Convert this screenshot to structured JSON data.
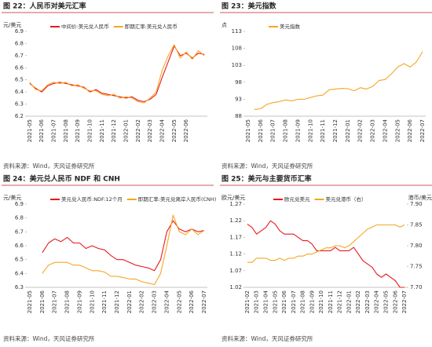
{
  "chart_data": [
    {
      "type": "line",
      "title": "图 22：人民币对美元汇率",
      "y_label": "元/美元",
      "source": "资料来源：Wind，天风证券研究所",
      "categories": [
        "2021-05",
        null,
        "2021-06",
        null,
        "2021-07",
        null,
        "2021-08",
        null,
        "2021-09",
        null,
        "2021-10",
        null,
        "2021-11",
        null,
        "2021-12",
        null,
        "2022-01",
        null,
        "2022-02",
        null,
        "2022-03",
        null,
        "2022-04",
        null,
        "2022-05",
        null,
        "2022-06",
        null,
        null,
        null
      ],
      "series": [
        {
          "name": "中间价:美元兑人民币",
          "color": "#e8191d",
          "values": [
            6.47,
            6.43,
            6.4,
            6.45,
            6.47,
            6.48,
            6.47,
            6.46,
            6.45,
            6.44,
            6.4,
            6.42,
            6.39,
            6.38,
            6.37,
            6.36,
            6.35,
            6.36,
            6.33,
            6.32,
            6.34,
            6.38,
            6.52,
            6.65,
            6.78,
            6.7,
            6.72,
            6.68,
            6.72,
            6.71
          ]
        },
        {
          "name": "即期汇率:美元兑人民币",
          "color": "#f5a623",
          "values": [
            6.48,
            6.42,
            6.41,
            6.46,
            6.48,
            6.47,
            6.48,
            6.45,
            6.46,
            6.43,
            6.41,
            6.41,
            6.38,
            6.37,
            6.38,
            6.35,
            6.36,
            6.35,
            6.32,
            6.31,
            6.35,
            6.4,
            6.58,
            6.7,
            6.79,
            6.68,
            6.73,
            6.67,
            6.74,
            6.7
          ]
        }
      ],
      "ylim": [
        6.2,
        6.9
      ],
      "yticks": [
        6.2,
        6.3,
        6.4,
        6.5,
        6.6,
        6.7,
        6.8,
        6.9
      ]
    },
    {
      "type": "line",
      "title": "图 23：美元指数",
      "y_label": "点",
      "source": "资料来源：Wind，天风证券研究所",
      "categories": [
        "2021-05",
        null,
        "2021-06",
        null,
        "2021-07",
        null,
        "2021-08",
        null,
        "2021-09",
        null,
        "2021-10",
        null,
        "2021-11",
        null,
        "2021-12",
        null,
        "2022-01",
        null,
        "2022-02",
        null,
        "2022-03",
        null,
        "2022-04",
        null,
        "2022-05",
        null,
        "2022-06",
        null,
        "2022-07"
      ],
      "series": [
        {
          "name": "美元指数",
          "color": "#f5a623",
          "values": [
            null,
            90.0,
            90.2,
            91.5,
            92.0,
            92.3,
            92.8,
            92.5,
            93.0,
            93.0,
            93.5,
            94.0,
            94.2,
            95.8,
            96.0,
            96.2,
            96.1,
            95.5,
            96.4,
            96.0,
            96.8,
            98.5,
            98.8,
            100.5,
            102.5,
            103.5,
            102.5,
            104.0,
            107.0
          ]
        }
      ],
      "ylim": [
        88,
        113
      ],
      "yticks": [
        88,
        93,
        98,
        103,
        108,
        113
      ]
    },
    {
      "type": "line",
      "title": "图 24：美元兑人民币 NDF 和 CNH",
      "y_label": "元/美元",
      "source": "资料来源：Wind，天风证券研究所",
      "categories": [
        "2021-05",
        null,
        "2021-06",
        null,
        "2021-07",
        null,
        "2021-08",
        null,
        "2021-09",
        null,
        "2021-10",
        null,
        "2021-11",
        null,
        "2021-12",
        null,
        "2022-01",
        null,
        "2022-02",
        null,
        "2022-03",
        null,
        "2022-04",
        null,
        "2022-05",
        null,
        "2022-06",
        null,
        "2022-07"
      ],
      "series": [
        {
          "name": "美元兑人民币:NDF:12个月",
          "color": "#e8191d",
          "values": [
            null,
            null,
            6.55,
            6.62,
            6.65,
            6.63,
            6.66,
            6.62,
            6.62,
            6.58,
            6.6,
            6.58,
            6.57,
            6.53,
            6.5,
            6.5,
            6.48,
            6.46,
            6.45,
            6.44,
            6.42,
            6.5,
            6.7,
            6.78,
            6.72,
            6.7,
            6.72,
            6.7,
            6.71
          ]
        },
        {
          "name": "即期汇率:美元兑离岸人民币(CNH)",
          "color": "#f5a623",
          "values": [
            null,
            null,
            6.4,
            6.46,
            6.48,
            6.48,
            6.48,
            6.46,
            6.46,
            6.44,
            6.42,
            6.42,
            6.41,
            6.38,
            6.38,
            6.37,
            6.36,
            6.36,
            6.34,
            6.33,
            6.32,
            6.4,
            6.6,
            6.82,
            6.7,
            6.68,
            6.72,
            6.68,
            6.71
          ]
        }
      ],
      "ylim": [
        6.3,
        6.9
      ],
      "yticks": [
        6.3,
        6.4,
        6.5,
        6.6,
        6.7,
        6.8,
        6.9
      ]
    },
    {
      "type": "line",
      "title": "图 25：美元与主要货币汇率",
      "y_label": "欧元/美元",
      "y2_label": "港币/美元",
      "source": "资料来源：Wind，天风证券研究所",
      "categories": [
        "2021-02",
        null,
        "2021-03",
        null,
        "2021-04",
        null,
        "2021-05",
        null,
        "2021-06",
        null,
        "2021-07",
        null,
        "2021-08",
        null,
        "2021-09",
        null,
        "2021-10",
        null,
        "2021-11",
        null,
        "2021-12",
        null,
        "2022-01",
        null,
        "2022-02",
        null,
        "2022-03",
        null,
        "2022-04",
        null,
        "2022-05",
        null,
        "2022-06",
        null,
        "2022-07"
      ],
      "series": [
        {
          "name": "欧元兑美元",
          "color": "#e8191d",
          "values": [
            1.21,
            1.2,
            1.18,
            1.19,
            1.2,
            1.22,
            1.21,
            1.19,
            1.18,
            1.18,
            1.18,
            1.17,
            1.16,
            1.16,
            1.15,
            1.13,
            1.13,
            1.13,
            1.13,
            1.14,
            1.13,
            1.13,
            1.13,
            1.14,
            1.12,
            1.1,
            1.09,
            1.08,
            1.06,
            1.05,
            1.06,
            1.05,
            1.04,
            1.02,
            1.02
          ]
        },
        {
          "name": "美元兑港币（右）",
          "color": "#f5a623",
          "axis": "y2",
          "values": [
            7.76,
            7.76,
            7.77,
            7.77,
            7.77,
            7.765,
            7.765,
            7.77,
            7.765,
            7.77,
            7.77,
            7.775,
            7.775,
            7.78,
            7.78,
            7.785,
            7.79,
            7.795,
            7.795,
            7.8,
            7.8,
            7.795,
            7.8,
            7.81,
            7.82,
            7.83,
            7.84,
            7.845,
            7.85,
            7.85,
            7.85,
            7.85,
            7.85,
            7.845,
            7.85
          ]
        }
      ],
      "ylim": [
        1.02,
        1.27
      ],
      "yticks": [
        1.02,
        1.07,
        1.12,
        1.17,
        1.22,
        1.27
      ],
      "y2lim": [
        7.7,
        7.9
      ],
      "y2ticks": [
        {
          "value": 7.7,
          "label": "7.70"
        },
        7.75,
        {
          "value": 7.8,
          "label": "7.80"
        },
        7.85,
        {
          "value": 7.9,
          "label": "7.90"
        }
      ]
    }
  ]
}
